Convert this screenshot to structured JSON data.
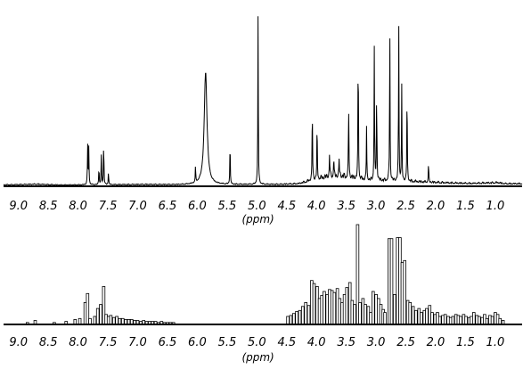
{
  "chart_data": [
    {
      "type": "line",
      "xlabel": "(ppm)",
      "x_reversed": true,
      "xlim": [
        9.25,
        0.55
      ],
      "ylim": [
        0,
        100
      ],
      "xticks": [
        "9.0",
        "8.5",
        "8.0",
        "7.5",
        "7.0",
        "6.5",
        "6.0",
        "5.5",
        "5.0",
        "4.5",
        "4.0",
        "3.5",
        "3.0",
        "2.5",
        "2.0",
        "1.5",
        "1.0"
      ],
      "baseline_noise": [
        [
          9.1,
          1.2
        ],
        [
          8.7,
          1.6
        ],
        [
          8.3,
          1.0
        ],
        [
          6.9,
          1.4
        ],
        [
          6.3,
          1.2
        ],
        [
          4.6,
          1.5
        ],
        [
          4.3,
          2.0
        ],
        [
          3.95,
          6.0
        ],
        [
          3.8,
          7.5
        ],
        [
          3.6,
          8.0
        ],
        [
          3.4,
          6.5
        ],
        [
          3.2,
          5.0
        ],
        [
          3.1,
          4.5
        ],
        [
          2.9,
          4.5
        ],
        [
          2.6,
          4.0
        ],
        [
          2.3,
          3.5
        ],
        [
          2.0,
          3.0
        ],
        [
          1.7,
          2.5
        ],
        [
          1.4,
          2.2
        ],
        [
          1.2,
          2.5
        ],
        [
          0.95,
          2.8
        ],
        [
          0.85,
          2.0
        ]
      ],
      "peaks": [
        {
          "ppm": 7.84,
          "height": 23
        },
        {
          "ppm": 7.82,
          "height": 22
        },
        {
          "ppm": 7.65,
          "height": 10
        },
        {
          "ppm": 7.61,
          "height": 17
        },
        {
          "ppm": 7.57,
          "height": 24
        },
        {
          "ppm": 7.49,
          "height": 7
        },
        {
          "ppm": 6.03,
          "height": 9
        },
        {
          "ppm": 5.86,
          "height": 65
        },
        {
          "ppm": 5.45,
          "height": 25
        },
        {
          "ppm": 4.98,
          "height": 100
        },
        {
          "ppm": 4.07,
          "height": 45
        },
        {
          "ppm": 3.99,
          "height": 33
        },
        {
          "ppm": 3.78,
          "height": 14
        },
        {
          "ppm": 3.71,
          "height": 12
        },
        {
          "ppm": 3.62,
          "height": 10
        },
        {
          "ppm": 3.46,
          "height": 42
        },
        {
          "ppm": 3.3,
          "height": 77
        },
        {
          "ppm": 3.16,
          "height": 31
        },
        {
          "ppm": 3.03,
          "height": 78
        },
        {
          "ppm": 2.99,
          "height": 52
        },
        {
          "ppm": 2.77,
          "height": 91
        },
        {
          "ppm": 2.62,
          "height": 91
        },
        {
          "ppm": 2.57,
          "height": 55
        },
        {
          "ppm": 2.48,
          "height": 54
        },
        {
          "ppm": 2.12,
          "height": 11
        }
      ]
    },
    {
      "type": "bar",
      "xlabel": "(ppm)",
      "x_reversed": true,
      "xlim": [
        9.25,
        0.55
      ],
      "ylim": [
        0,
        100
      ],
      "xticks": [
        "9.0",
        "8.5",
        "8.0",
        "7.5",
        "7.0",
        "6.5",
        "6.0",
        "5.5",
        "5.0",
        "4.5",
        "4.0",
        "3.5",
        "3.0",
        "2.5",
        "2.0",
        "1.5",
        "1.0"
      ],
      "bins": [
        [
          8.85,
          2
        ],
        [
          8.72,
          4
        ],
        [
          8.4,
          2
        ],
        [
          8.2,
          3
        ],
        [
          8.05,
          5
        ],
        [
          7.97,
          6
        ],
        [
          7.88,
          22
        ],
        [
          7.84,
          31
        ],
        [
          7.8,
          6
        ],
        [
          7.72,
          8
        ],
        [
          7.67,
          16
        ],
        [
          7.62,
          20
        ],
        [
          7.57,
          38
        ],
        [
          7.53,
          10
        ],
        [
          7.49,
          8
        ],
        [
          7.45,
          9
        ],
        [
          7.4,
          7
        ],
        [
          7.35,
          8
        ],
        [
          7.3,
          6
        ],
        [
          7.25,
          6
        ],
        [
          7.2,
          5
        ],
        [
          7.15,
          5
        ],
        [
          7.1,
          5
        ],
        [
          7.05,
          4
        ],
        [
          7.0,
          4
        ],
        [
          6.95,
          3
        ],
        [
          6.9,
          4
        ],
        [
          6.85,
          3
        ],
        [
          6.8,
          3
        ],
        [
          6.75,
          3
        ],
        [
          6.7,
          3
        ],
        [
          6.65,
          2
        ],
        [
          6.6,
          3
        ],
        [
          6.55,
          2
        ],
        [
          6.5,
          2
        ],
        [
          6.45,
          2
        ],
        [
          6.4,
          2
        ],
        [
          4.48,
          8
        ],
        [
          4.43,
          9
        ],
        [
          4.38,
          11
        ],
        [
          4.33,
          13
        ],
        [
          4.28,
          14
        ],
        [
          4.23,
          18
        ],
        [
          4.18,
          22
        ],
        [
          4.13,
          19
        ],
        [
          4.08,
          44
        ],
        [
          4.04,
          41
        ],
        [
          3.99,
          38
        ],
        [
          3.95,
          26
        ],
        [
          3.91,
          29
        ],
        [
          3.87,
          33
        ],
        [
          3.82,
          30
        ],
        [
          3.78,
          35
        ],
        [
          3.74,
          34
        ],
        [
          3.7,
          32
        ],
        [
          3.65,
          36
        ],
        [
          3.61,
          26
        ],
        [
          3.57,
          22
        ],
        [
          3.53,
          30
        ],
        [
          3.49,
          37
        ],
        [
          3.44,
          42
        ],
        [
          3.4,
          24
        ],
        [
          3.36,
          20
        ],
        [
          3.31,
          100
        ],
        [
          3.27,
          22
        ],
        [
          3.22,
          26
        ],
        [
          3.18,
          20
        ],
        [
          3.13,
          18
        ],
        [
          3.09,
          12
        ],
        [
          3.05,
          33
        ],
        [
          3.0,
          30
        ],
        [
          2.96,
          26
        ],
        [
          2.92,
          20
        ],
        [
          2.88,
          15
        ],
        [
          2.85,
          12
        ],
        [
          2.78,
          86
        ],
        [
          2.74,
          86
        ],
        [
          2.69,
          30
        ],
        [
          2.64,
          87
        ],
        [
          2.6,
          87
        ],
        [
          2.56,
          62
        ],
        [
          2.52,
          64
        ],
        [
          2.47,
          24
        ],
        [
          2.43,
          22
        ],
        [
          2.38,
          18
        ],
        [
          2.33,
          14
        ],
        [
          2.28,
          16
        ],
        [
          2.24,
          12
        ],
        [
          2.19,
          14
        ],
        [
          2.15,
          16
        ],
        [
          2.1,
          19
        ],
        [
          2.06,
          12
        ],
        [
          2.01,
          10
        ],
        [
          1.97,
          12
        ],
        [
          1.93,
          8
        ],
        [
          1.88,
          9
        ],
        [
          1.84,
          10
        ],
        [
          1.79,
          8
        ],
        [
          1.75,
          7
        ],
        [
          1.71,
          8
        ],
        [
          1.66,
          10
        ],
        [
          1.62,
          9
        ],
        [
          1.58,
          8
        ],
        [
          1.53,
          10
        ],
        [
          1.49,
          8
        ],
        [
          1.44,
          7
        ],
        [
          1.4,
          8
        ],
        [
          1.36,
          12
        ],
        [
          1.31,
          9
        ],
        [
          1.27,
          8
        ],
        [
          1.22,
          7
        ],
        [
          1.18,
          10
        ],
        [
          1.14,
          6
        ],
        [
          1.09,
          9
        ],
        [
          1.05,
          8
        ],
        [
          1.0,
          12
        ],
        [
          0.96,
          10
        ],
        [
          0.92,
          6
        ],
        [
          0.87,
          4
        ]
      ]
    }
  ]
}
